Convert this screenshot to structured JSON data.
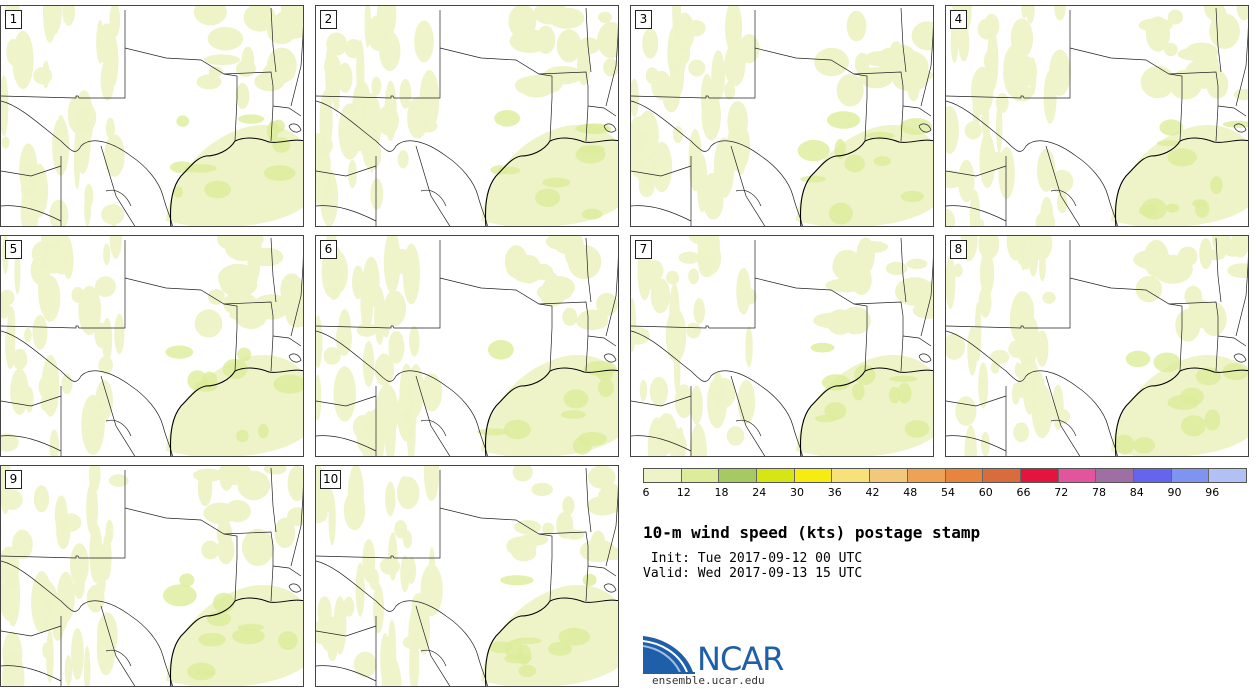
{
  "panels": [
    {
      "label": "1"
    },
    {
      "label": "2"
    },
    {
      "label": "3"
    },
    {
      "label": "4"
    },
    {
      "label": "5"
    },
    {
      "label": "6"
    },
    {
      "label": "7"
    },
    {
      "label": "8"
    },
    {
      "label": "9"
    },
    {
      "label": "10"
    }
  ],
  "colorbar": {
    "colors": [
      "#eef3c8",
      "#dcec9a",
      "#a7c964",
      "#d6e514",
      "#f6ec11",
      "#f7e27a",
      "#f2c97a",
      "#eda255",
      "#e7853e",
      "#d86c3c",
      "#e5143e",
      "#e2559d",
      "#9f6fa4",
      "#6464ec",
      "#7f94f0",
      "#b2c1f4"
    ],
    "ticks": [
      "6",
      "12",
      "18",
      "24",
      "30",
      "36",
      "42",
      "48",
      "54",
      "60",
      "66",
      "72",
      "78",
      "84",
      "90",
      "96"
    ]
  },
  "title": "10-m wind speed (kts) postage stamp",
  "init": " Init: Tue 2017-09-12 00 UTC",
  "valid": "Valid: Wed 2017-09-13 15 UTC",
  "logo": {
    "text": "NCAR",
    "url": "ensemble.ucar.edu"
  },
  "map_colors": {
    "light_wind": "#eef3c8",
    "medium_wind": "#dcec9a",
    "border": "#222222"
  }
}
